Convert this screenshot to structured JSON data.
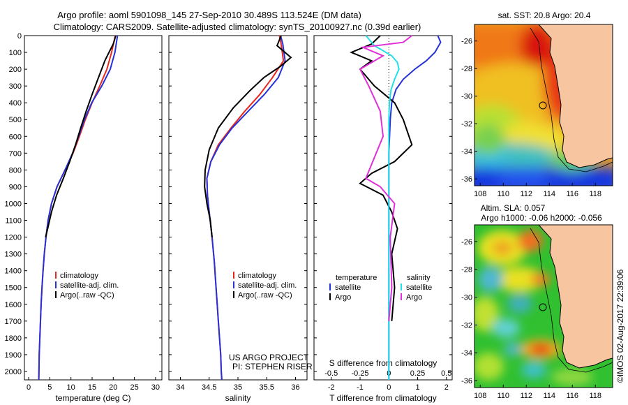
{
  "title": {
    "line1": "Argo profile: aoml 5901098_145 27-Sep-2010 30.489S 113.524E (DM data)",
    "line2": "Climatology: CARS2009. Satellite-adjusted climatology: synTS_20100927.nc (0.39d earlier)"
  },
  "side_stamp": "©IMOS 02-Aug-2017 22:39:06",
  "credits": {
    "project": "US ARGO PROJECT",
    "pi": "PI: STEPHEN RISER"
  },
  "colors": {
    "climatology": "#e8281e",
    "satellite": "#2632d8",
    "argo": "#000000",
    "sal_sat": "#22e0e8",
    "sal_argo": "#e030d8",
    "land": "#f7c59f",
    "coast": "#000000"
  },
  "depth_ticks": [
    0,
    100,
    200,
    300,
    400,
    500,
    600,
    700,
    800,
    900,
    1000,
    1100,
    1200,
    1300,
    1400,
    1500,
    1600,
    1700,
    1800,
    1900,
    2000
  ],
  "chart_data": [
    {
      "type": "line",
      "xlabel": "temperature (deg C)",
      "xlim": [
        -1,
        31.5
      ],
      "ylim": [
        2050,
        0
      ],
      "xticks": [
        0,
        5,
        10,
        15,
        20,
        25,
        30
      ],
      "legend": [
        "climatology",
        "satellite-adj. clim.",
        "Argo(..raw -QC)"
      ],
      "series": [
        {
          "name": "climatology",
          "color": "#e8281e",
          "x": [
            20.5,
            19.6,
            18.5,
            16.8,
            15.0,
            13.4,
            12.0,
            10.5,
            8.6,
            6.7,
            5.4,
            4.6,
            4.1,
            3.7,
            3.4,
            3.15,
            2.95,
            2.8,
            2.65,
            2.5,
            2.4
          ],
          "y": [
            0,
            100,
            200,
            300,
            400,
            500,
            600,
            700,
            800,
            900,
            1000,
            1100,
            1200,
            1300,
            1400,
            1500,
            1600,
            1700,
            1800,
            1900,
            2050
          ]
        },
        {
          "name": "satellite-adj. clim.",
          "color": "#2632d8",
          "x": [
            21.0,
            20.4,
            19.3,
            17.3,
            14.9,
            13.2,
            11.8,
            10.4,
            8.6,
            6.7,
            5.4,
            4.6,
            4.1,
            3.7,
            3.4,
            3.15,
            2.95,
            2.8,
            2.65,
            2.5,
            2.4
          ],
          "y": [
            0,
            100,
            200,
            300,
            400,
            500,
            600,
            700,
            800,
            900,
            1000,
            1100,
            1200,
            1300,
            1400,
            1500,
            1600,
            1700,
            1800,
            1900,
            2050
          ]
        },
        {
          "name": "Argo(..raw -QC)",
          "color": "#000000",
          "x": [
            20.6,
            20.0,
            19.0,
            18.0,
            16.5,
            15.0,
            13.6,
            12.3,
            11.1,
            9.7,
            8.2,
            6.6,
            5.4,
            4.5,
            4.0
          ],
          "y": [
            0,
            50,
            100,
            150,
            250,
            350,
            450,
            550,
            650,
            750,
            850,
            950,
            1050,
            1150,
            1200
          ]
        }
      ]
    },
    {
      "type": "line",
      "xlabel": "salinity",
      "xlim": [
        33.8,
        36.2
      ],
      "ylim": [
        2050,
        0
      ],
      "xticks": [
        34,
        34.5,
        35,
        35.5,
        36
      ],
      "legend": [
        "climatology",
        "satellite-adj. clim.",
        "Argo(..raw -QC)"
      ],
      "series": [
        {
          "name": "climatology",
          "color": "#e8281e",
          "x": [
            35.72,
            35.75,
            35.79,
            35.6,
            35.38,
            35.12,
            34.88,
            34.66,
            34.53,
            34.46,
            34.47,
            34.5,
            34.55,
            34.59,
            34.62,
            34.64,
            34.66,
            34.68,
            34.7,
            34.71,
            34.72
          ],
          "y": [
            0,
            50,
            150,
            250,
            350,
            450,
            550,
            650,
            750,
            850,
            950,
            1050,
            1200,
            1350,
            1500,
            1600,
            1700,
            1800,
            1900,
            2000,
            2050
          ]
        },
        {
          "name": "satellite-adj. clim.",
          "color": "#2632d8",
          "x": [
            35.74,
            35.78,
            35.82,
            35.7,
            35.46,
            35.18,
            34.9,
            34.68,
            34.53,
            34.46,
            34.47,
            34.5,
            34.55,
            34.59,
            34.62,
            34.64,
            34.66,
            34.68,
            34.7,
            34.71,
            34.72
          ],
          "y": [
            0,
            50,
            150,
            250,
            350,
            450,
            550,
            650,
            750,
            850,
            950,
            1050,
            1200,
            1350,
            1500,
            1600,
            1700,
            1800,
            1900,
            2000,
            2050
          ]
        },
        {
          "name": "Argo(..raw -QC)",
          "color": "#000000",
          "x": [
            35.75,
            35.68,
            35.92,
            35.75,
            35.45,
            35.2,
            34.92,
            34.66,
            34.5,
            34.43,
            34.42,
            34.46,
            34.52,
            34.55
          ],
          "y": [
            0,
            60,
            130,
            180,
            250,
            330,
            430,
            550,
            680,
            800,
            900,
            1000,
            1100,
            1200
          ]
        }
      ]
    },
    {
      "type": "line",
      "xlabel": "T difference from climatology",
      "xlabel2": "S difference from climatology",
      "xlim": [
        -2.6,
        2.2
      ],
      "ylim": [
        2050,
        0
      ],
      "xticks": [
        -2,
        -1,
        0,
        1,
        2
      ],
      "xticks2": [
        -0.5,
        -0.25,
        0,
        0.25,
        0.5
      ],
      "legend_titles": [
        "temperature",
        "salinity"
      ],
      "legend": [
        "satellite",
        "Argo",
        "satellite",
        "Argo"
      ],
      "series": [
        {
          "name": "satellite",
          "color": "#2632d8",
          "x": [
            1.7,
            1.8,
            1.6,
            1.3,
            0.9,
            0.5,
            0.25,
            0.1,
            0.05,
            0.0,
            0.0,
            0.0,
            0.0
          ],
          "y": [
            0,
            40,
            100,
            150,
            200,
            260,
            320,
            400,
            500,
            700,
            900,
            1200,
            2050
          ]
        },
        {
          "name": "Argo",
          "color": "#000000",
          "x": [
            -0.3,
            -0.6,
            -1.3,
            -0.6,
            -1.0,
            -0.5,
            0.2,
            0.5,
            0.8,
            0.2,
            -0.6,
            -1.0,
            -0.2,
            0.1,
            0.3,
            0.1,
            0.2,
            0.1
          ],
          "y": [
            0,
            50,
            100,
            150,
            200,
            300,
            400,
            500,
            650,
            750,
            820,
            880,
            950,
            1050,
            1150,
            1300,
            1500,
            1700
          ]
        },
        {
          "name": "satellite",
          "color": "#22e0e8",
          "x": [
            -0.8,
            -0.5,
            0.1,
            0.3,
            0.35,
            0.2,
            0.08,
            0.02,
            0.0,
            0.0,
            0.0,
            0.0
          ],
          "y": [
            0,
            60,
            120,
            160,
            200,
            260,
            320,
            400,
            500,
            700,
            1200,
            2050
          ]
        },
        {
          "name": "Argo",
          "color": "#e030d8",
          "x": [
            0.8,
            0.5,
            -0.9,
            -0.2,
            -1.0,
            -0.7,
            -0.3,
            -0.2,
            -0.8,
            -0.3,
            0.2,
            0.05,
            0.1,
            0.0
          ],
          "y": [
            0,
            40,
            70,
            120,
            200,
            300,
            450,
            600,
            850,
            900,
            1000,
            1200,
            1500,
            1700
          ]
        }
      ]
    },
    {
      "type": "heatmap",
      "title": "sat. SST: 20.8 Argo: 20.4",
      "xlim": [
        107.5,
        119.5
      ],
      "ylim": [
        -36.5,
        -24.8
      ],
      "xticks": [
        108,
        110,
        112,
        114,
        116,
        118
      ],
      "yticks": [
        -26,
        -28,
        -30,
        -32,
        -34,
        -36
      ],
      "marker": {
        "lon": 113.524,
        "lat": -30.489
      }
    },
    {
      "type": "heatmap",
      "title_line1": "Altim. SLA: 0.057",
      "title_line2": "Argo h1000: -0.06 h2000: -0.056",
      "xlim": [
        107.5,
        119.5
      ],
      "ylim": [
        -36.5,
        -24.8
      ],
      "xticks": [
        108,
        110,
        112,
        114,
        116,
        118
      ],
      "yticks": [
        -26,
        -28,
        -30,
        -32,
        -34,
        -36
      ],
      "marker": {
        "lon": 113.524,
        "lat": -30.489
      }
    }
  ]
}
